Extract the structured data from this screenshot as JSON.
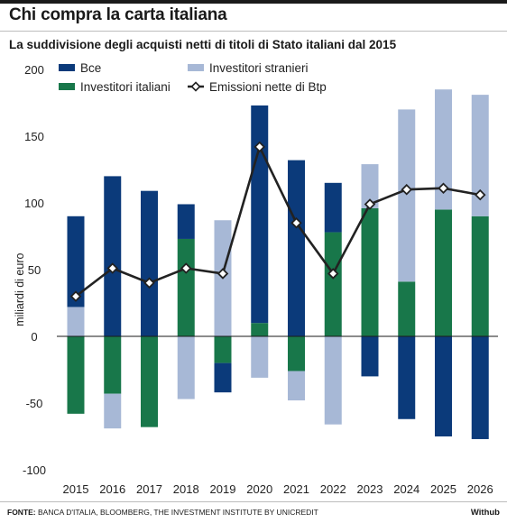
{
  "title": "Chi compra la carta italiana",
  "subtitle": "La suddivisione degli acquisti netti di titoli di Stato italiani dal 2015",
  "footer": {
    "source_label": "FONTE:",
    "source_text": "BANCA D'ITALIA, BLOOMBERG, THE INVESTMENT INSTITUTE BY UNICREDIT",
    "brand": "Withub"
  },
  "colors": {
    "bce": "#0b3a7a",
    "stranieri": "#a7b8d6",
    "italiani": "#18774a",
    "line": "#222222"
  },
  "chart_data": {
    "type": "bar",
    "stacked": true,
    "categories": [
      "2015",
      "2016",
      "2017",
      "2018",
      "2019",
      "2020",
      "2021",
      "2022",
      "2023",
      "2024",
      "2025",
      "2026"
    ],
    "ylabel": "miliardi di euro",
    "ylim": [
      -100,
      200
    ],
    "yticks": [
      200,
      150,
      100,
      50,
      0,
      -50,
      -100
    ],
    "grid": false,
    "legend_position": "top-left",
    "series": [
      {
        "name": "Bce",
        "values": [
          68,
          120,
          109,
          26,
          -22,
          163,
          132,
          37,
          -30,
          -62,
          -75,
          -77
        ]
      },
      {
        "name": "Investitori italiani",
        "values": [
          -58,
          -43,
          -68,
          73,
          -20,
          10,
          -26,
          78,
          96,
          41,
          95,
          90
        ]
      },
      {
        "name": "Investitori stranieri",
        "values": [
          22,
          -26,
          0,
          -47,
          87,
          -31,
          -22,
          -66,
          33,
          129,
          90,
          91
        ]
      },
      {
        "name": "Emissioni nette di Btp",
        "type": "line",
        "values": [
          30,
          51,
          40,
          51,
          47,
          142,
          85,
          47,
          99,
          110,
          111,
          106
        ]
      }
    ],
    "legend": [
      {
        "label": "Bce",
        "kind": "bar",
        "series": "bce"
      },
      {
        "label": "Investitori stranieri",
        "kind": "bar",
        "series": "stranieri"
      },
      {
        "label": "Investitori italiani",
        "kind": "bar",
        "series": "italiani"
      },
      {
        "label": "Emissioni nette di Btp",
        "kind": "line",
        "series": "line"
      }
    ]
  }
}
